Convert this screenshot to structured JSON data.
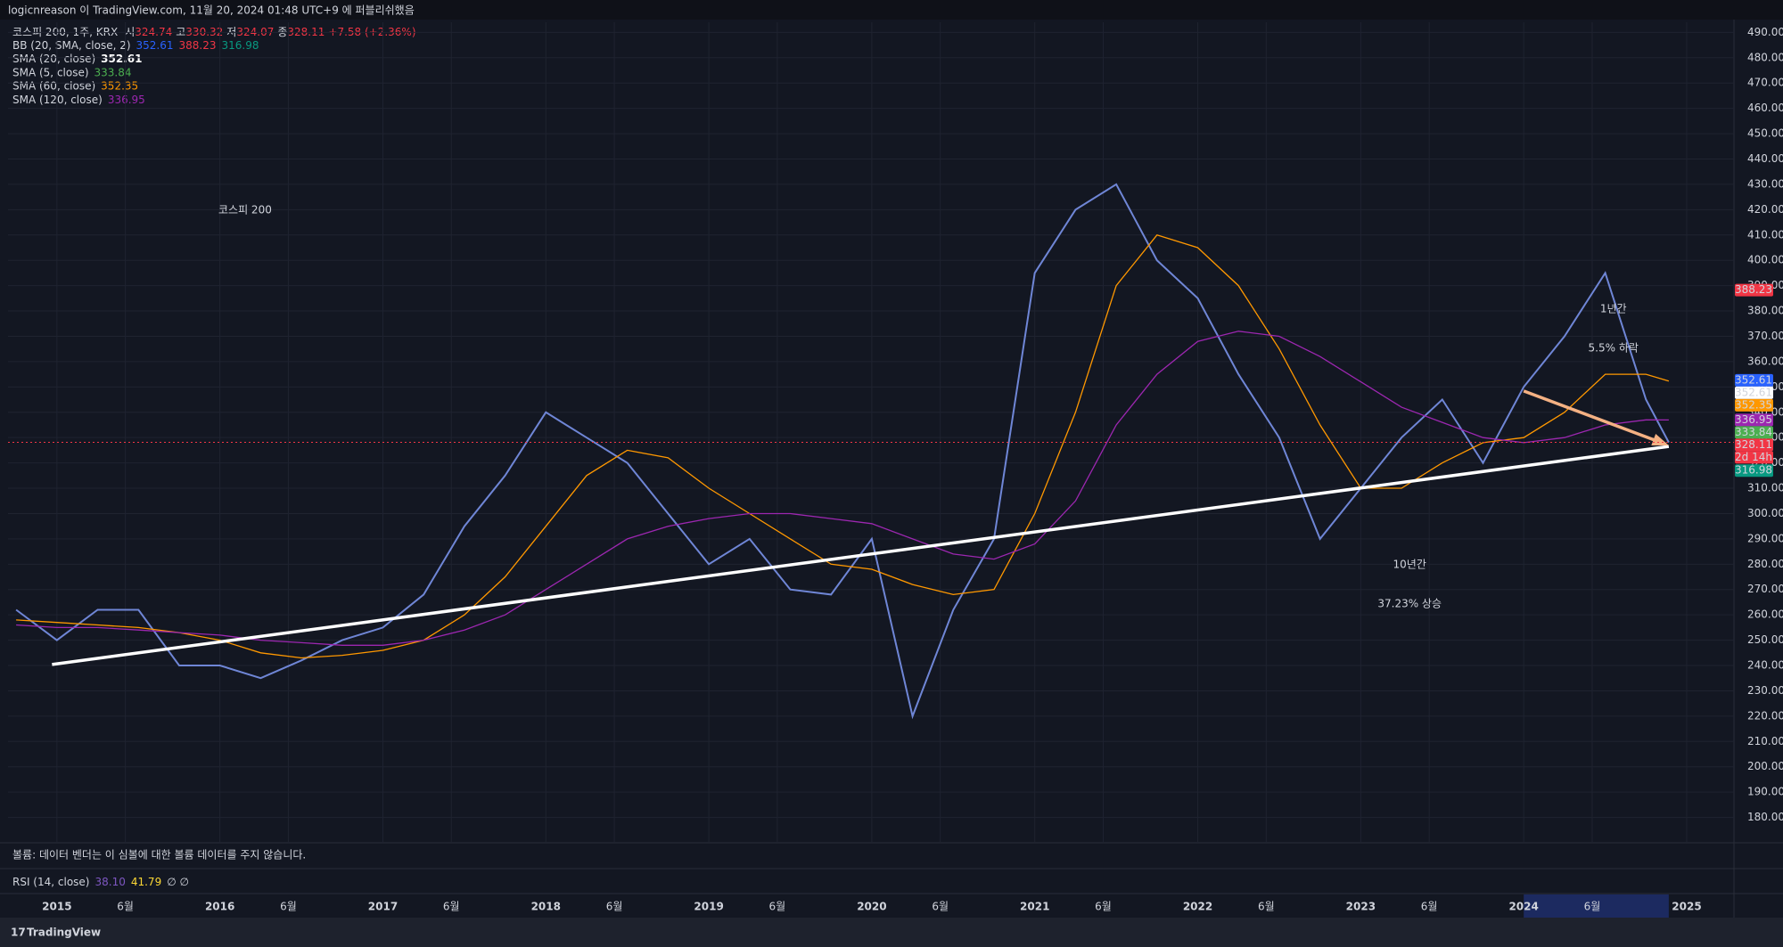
{
  "header": {
    "publisher": "logicnreason 이 TradingView.com, 11월 20, 2024 01:48 UTC+9 에 퍼블리쉬했음",
    "symbol": "코스피 200, 1주, KRX",
    "ohlc": [
      {
        "label": "시",
        "value": 324.74
      },
      {
        "label": "고",
        "value": 330.32
      },
      {
        "label": "저",
        "value": 324.07
      },
      {
        "label": "종",
        "value": 328.11
      }
    ],
    "change": "+7.58 (+2.36%)"
  },
  "indicators": [
    {
      "label": "BB (20, SMA, close, 2)",
      "values": [
        352.61,
        388.23,
        316.98
      ],
      "colors": [
        "#2962ff",
        "#f23645",
        "#089981"
      ]
    },
    {
      "label": "SMA (20, close)",
      "values": [
        352.61
      ],
      "colors": [
        "#ffffff"
      ]
    },
    {
      "label": "SMA (5, close)",
      "values": [
        333.84
      ],
      "colors": [
        "#4caf50"
      ]
    },
    {
      "label": "SMA (60, close)",
      "values": [
        352.35
      ],
      "colors": [
        "#ff9800"
      ]
    },
    {
      "label": "SMA (120, close)",
      "values": [
        336.95
      ],
      "colors": [
        "#9c27b0"
      ]
    }
  ],
  "chart_data": {
    "type": "line",
    "title": "코스피 200",
    "x": [
      2014.75,
      2015.0,
      2015.25,
      2015.5,
      2015.75,
      2016.0,
      2016.25,
      2016.5,
      2016.75,
      2017.0,
      2017.25,
      2017.5,
      2017.75,
      2018.0,
      2018.25,
      2018.5,
      2018.75,
      2019.0,
      2019.25,
      2019.5,
      2019.75,
      2020.0,
      2020.25,
      2020.5,
      2020.75,
      2021.0,
      2021.25,
      2021.5,
      2021.75,
      2022.0,
      2022.25,
      2022.5,
      2022.75,
      2023.0,
      2023.25,
      2023.5,
      2023.75,
      2024.0,
      2024.25,
      2024.5,
      2024.75,
      2024.89
    ],
    "series": [
      {
        "color": "#6f86d6",
        "values": [
          262,
          250,
          262,
          262,
          240,
          240,
          235,
          242,
          250,
          255,
          268,
          295,
          315,
          340,
          330,
          320,
          300,
          280,
          290,
          270,
          268,
          290,
          220,
          262,
          290,
          395,
          420,
          430,
          400,
          385,
          355,
          330,
          290,
          310,
          330,
          345,
          320,
          350,
          370,
          395,
          345,
          328.11
        ]
      },
      {
        "name": "SMA (60, close)",
        "color": "#ff9800",
        "values": [
          258,
          257,
          256,
          255,
          253,
          250,
          245,
          243,
          244,
          246,
          250,
          260,
          275,
          295,
          315,
          325,
          322,
          310,
          300,
          290,
          280,
          278,
          272,
          268,
          270,
          300,
          340,
          390,
          410,
          405,
          390,
          365,
          335,
          310,
          310,
          320,
          328,
          330,
          340,
          355,
          355,
          352.35
        ]
      },
      {
        "name": "SMA (120, close)",
        "color": "#9c27b0",
        "values": [
          256,
          255,
          255,
          254,
          253,
          252,
          250,
          249,
          248,
          248,
          250,
          254,
          260,
          270,
          280,
          290,
          295,
          298,
          300,
          300,
          298,
          296,
          290,
          284,
          282,
          288,
          305,
          335,
          355,
          368,
          372,
          370,
          362,
          352,
          342,
          336,
          330,
          328,
          330,
          335,
          337,
          336.95
        ]
      }
    ],
    "xlim": [
      2014.7,
      2025.29
    ],
    "xticks": [
      2015,
      {
        "value": 2015.42,
        "label": "6월"
      },
      2016,
      {
        "value": 2016.42,
        "label": "6월"
      },
      2017,
      {
        "value": 2017.42,
        "label": "6월"
      },
      2018,
      {
        "value": 2018.42,
        "label": "6월"
      },
      2019,
      {
        "value": 2019.42,
        "label": "6월"
      },
      2020,
      {
        "value": 2020.42,
        "label": "6월"
      },
      2021,
      {
        "value": 2021.42,
        "label": "6월"
      },
      2022,
      {
        "value": 2022.42,
        "label": "6월"
      },
      2023,
      {
        "value": 2023.42,
        "label": "6월"
      },
      2024,
      {
        "value": 2024.42,
        "label": "6월"
      },
      2025
    ],
    "ylim": [
      170,
      494
    ],
    "yticks": [
      {
        "value": 180,
        "label": "180.00"
      },
      {
        "value": 190,
        "label": "190.00"
      },
      {
        "value": 200,
        "label": "200.00"
      },
      {
        "value": 210,
        "label": "210.00"
      },
      {
        "value": 220,
        "label": "220.00"
      },
      {
        "value": 230,
        "label": "230.00"
      },
      {
        "value": 240,
        "label": "240.00"
      },
      {
        "value": 250,
        "label": "250.00"
      },
      {
        "value": 260,
        "label": "260.00"
      },
      {
        "value": 270,
        "label": "270.00"
      },
      {
        "value": 280,
        "label": "280.00"
      },
      {
        "value": 290,
        "label": "290.00"
      },
      {
        "value": 300,
        "label": "300.00"
      },
      {
        "value": 310,
        "label": "310.00"
      },
      {
        "value": 320,
        "label": "320.00"
      },
      {
        "value": 330,
        "label": "330.00"
      },
      {
        "value": 340,
        "label": "340.00"
      },
      {
        "value": 350,
        "label": "350.00"
      },
      {
        "value": 360,
        "label": "360.00"
      },
      {
        "value": 370,
        "label": "370.00"
      },
      {
        "value": 380,
        "label": "380.00"
      },
      {
        "value": 390,
        "label": "390.00"
      },
      {
        "value": 400,
        "label": "400.00"
      },
      {
        "value": 410,
        "label": "410.00"
      },
      {
        "value": 420,
        "label": "420.00"
      },
      {
        "value": 430,
        "label": "430.00"
      },
      {
        "value": 440,
        "label": "440.00"
      },
      {
        "value": 450,
        "label": "450.00"
      },
      {
        "value": 460,
        "label": "460.00"
      },
      {
        "value": 470,
        "label": "470.00"
      },
      {
        "value": 480,
        "label": "480.00"
      },
      {
        "value": 490,
        "label": "490.00"
      }
    ],
    "grid": true,
    "highlight_range": [
      2024.0,
      2024.89
    ],
    "trendline": {
      "x": [
        2014.97,
        2024.89
      ],
      "y": [
        240.4,
        326.5
      ],
      "color": "#ffffff"
    },
    "arrow": {
      "x": [
        2024.0,
        2024.87
      ],
      "y": [
        348.4,
        327.4
      ],
      "color": "#f4b183"
    },
    "annotations": [
      {
        "lines": [
          "1년간",
          "5.5% 하락"
        ],
        "x": 2024.55,
        "y": 373,
        "color": "#f4b183"
      },
      {
        "lines": [
          "10년간",
          "37.23% 상승"
        ],
        "x": 2023.3,
        "y": 272,
        "color": "#ffffff"
      }
    ],
    "price_tags": [
      {
        "value": 388.23,
        "color": "#f23645"
      },
      {
        "value": 352.61,
        "color": "#2962ff"
      },
      {
        "value": 352.61,
        "color": "#ffffff"
      },
      {
        "value": 352.35,
        "color": "#ff9800"
      },
      {
        "value": 336.95,
        "color": "#9c27b0"
      },
      {
        "value": 333.84,
        "color": "#4caf50"
      },
      {
        "value": 328.11,
        "color": "#f23645",
        "dashed": true
      },
      {
        "label": "2d 14h",
        "color": "#f23645"
      },
      {
        "value": 316.98,
        "color": "#089981"
      }
    ]
  },
  "volume_note": "볼륨: 데이터 벤더는 이 심볼에 대한 볼륨 데이터를 주지 않습니다.",
  "rsi": {
    "label": "RSI (14, close)",
    "values": [
      "38.10",
      "41.79"
    ],
    "extra": "∅ ∅"
  },
  "brand": "TradingView"
}
